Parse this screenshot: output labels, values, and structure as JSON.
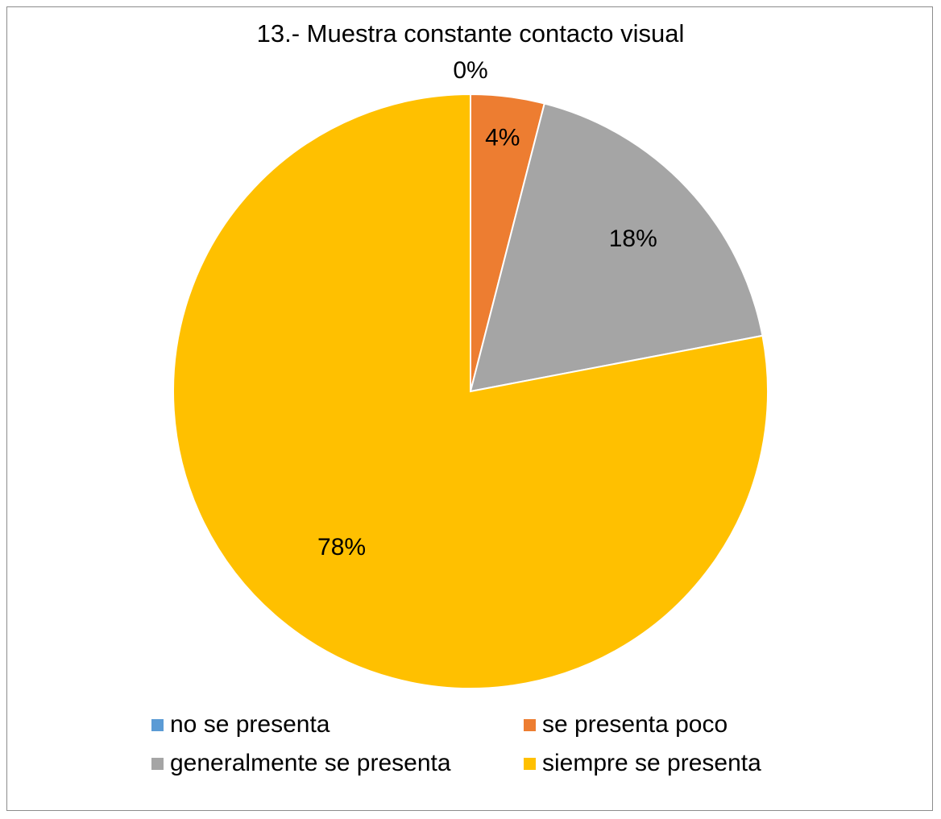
{
  "chart_data": {
    "type": "pie",
    "title": "13.- Muestra constante contacto visual",
    "categories": [
      "no se presenta",
      "se presenta poco",
      "generalmente se presenta",
      "siempre se presenta"
    ],
    "values": [
      0,
      4,
      18,
      78
    ],
    "data_labels": [
      "0%",
      "4%",
      "18%",
      "78%"
    ],
    "colors": [
      "#5B9BD5",
      "#ED7D31",
      "#A5A5A5",
      "#FFC000"
    ],
    "legend_position": "bottom",
    "start_angle": "top",
    "direction": "clockwise"
  }
}
